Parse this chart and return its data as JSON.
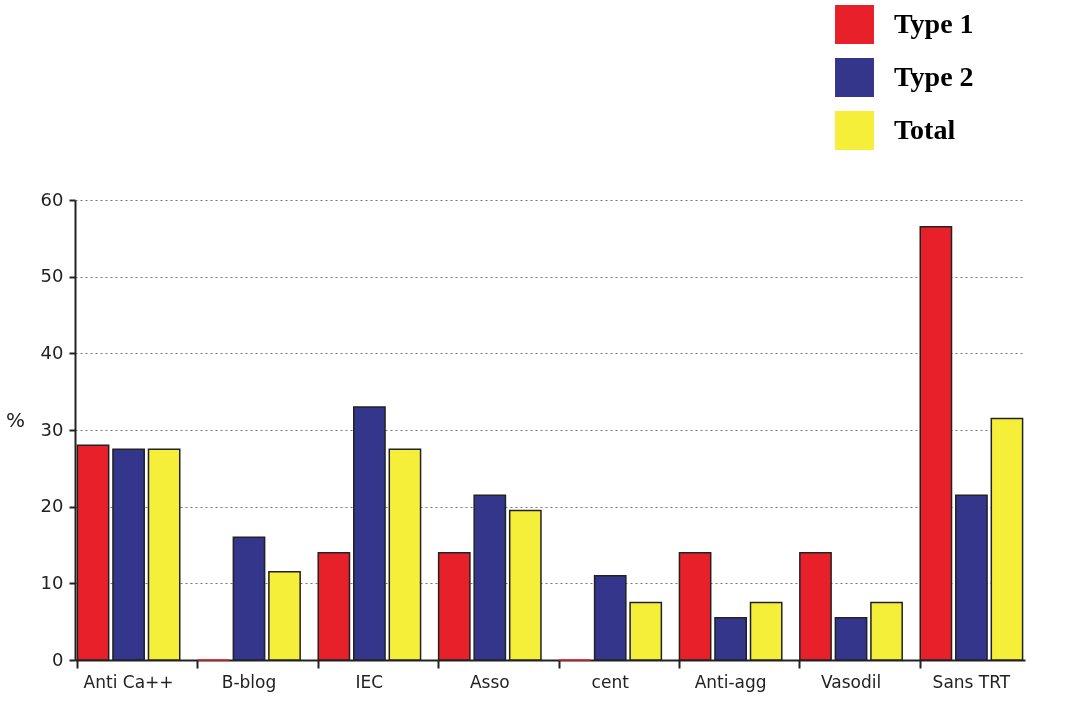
{
  "chart_data": {
    "type": "bar",
    "categories": [
      "Anti Ca++",
      "B-blog",
      "IEC",
      "Asso",
      "cent",
      "Anti-agg",
      "Vasodil",
      "Sans TRT"
    ],
    "series": [
      {
        "name": "Type 1",
        "color": "#e8202a",
        "values": [
          28,
          0,
          14,
          14,
          0,
          14,
          14,
          56.5
        ]
      },
      {
        "name": "Type 2",
        "color": "#33368a",
        "values": [
          27.5,
          16,
          33,
          21.5,
          11,
          5.5,
          5.5,
          21.5
        ]
      },
      {
        "name": "Total",
        "color": "#f5ef3a",
        "values": [
          27.5,
          11.5,
          27.5,
          19.5,
          7.5,
          7.5,
          7.5,
          31.5
        ]
      }
    ],
    "ylabel": "%",
    "ylim": [
      0,
      60
    ],
    "yticks": [
      0,
      10,
      20,
      30,
      40,
      50,
      60
    ],
    "grid": "y",
    "legend": "top right"
  }
}
